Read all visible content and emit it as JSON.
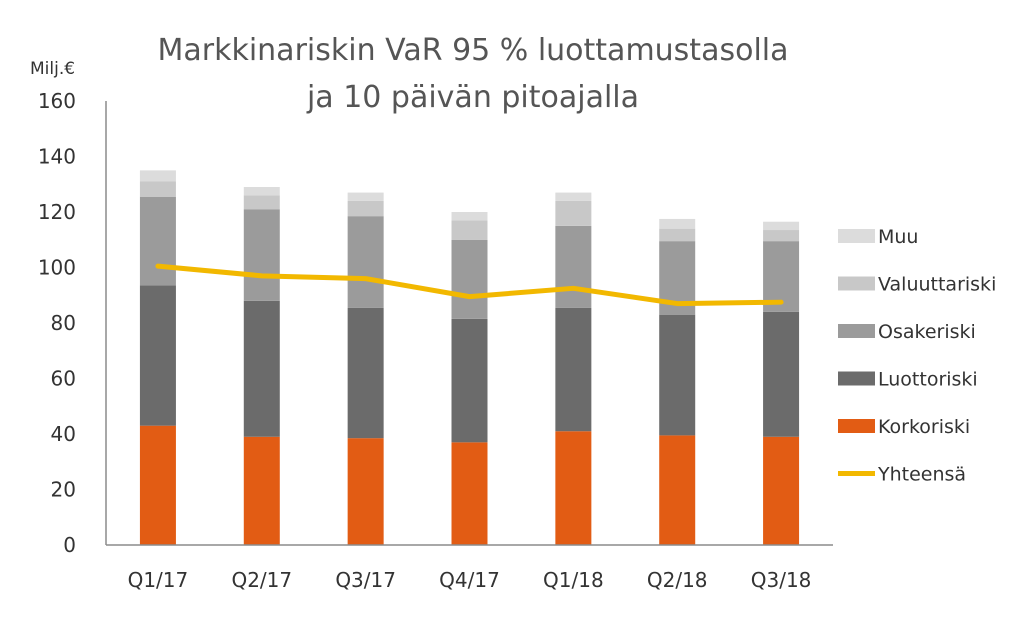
{
  "chart_data": {
    "type": "bar",
    "stacked": true,
    "title_lines": [
      "Markkinariskin VaR 95 % luottamustasolla",
      "ja 10 päivän pitoajalla"
    ],
    "ylabel": "Milj.€",
    "xlabel": "",
    "ylim": [
      0,
      160
    ],
    "yticks": [
      0,
      20,
      40,
      60,
      80,
      100,
      120,
      140,
      160
    ],
    "grid": false,
    "legend_position": "right",
    "categories": [
      "Q1/17",
      "Q2/17",
      "Q3/17",
      "Q4/17",
      "Q1/18",
      "Q2/18",
      "Q3/18"
    ],
    "series": [
      {
        "name": "Korkoriski",
        "type": "bar",
        "color": "#E25C14",
        "values": [
          43,
          39,
          38.5,
          37,
          41,
          39.5,
          39
        ]
      },
      {
        "name": "Luottoriski",
        "type": "bar",
        "color": "#6B6B6B",
        "values": [
          50.5,
          49,
          47,
          44.5,
          44.5,
          43.5,
          45
        ]
      },
      {
        "name": "Osakeriski",
        "type": "bar",
        "color": "#9B9B9B",
        "values": [
          32,
          33,
          33,
          28.5,
          29.5,
          26.5,
          25.5
        ]
      },
      {
        "name": "Valuuttariski",
        "type": "bar",
        "color": "#C8C8C8",
        "values": [
          5.5,
          5,
          5.5,
          7,
          9,
          4.5,
          4
        ]
      },
      {
        "name": "Muu",
        "type": "bar",
        "color": "#DCDCDC",
        "values": [
          4,
          3,
          3,
          3,
          3,
          3.5,
          3
        ]
      },
      {
        "name": "Yhteensä",
        "type": "line",
        "color": "#F2B800",
        "values": [
          100.5,
          97,
          96,
          89.5,
          92.5,
          87,
          87.5
        ]
      }
    ],
    "legend_order": [
      "Muu",
      "Valuuttariski",
      "Osakeriski",
      "Luottoriski",
      "Korkoriski",
      "Yhteensä"
    ]
  }
}
